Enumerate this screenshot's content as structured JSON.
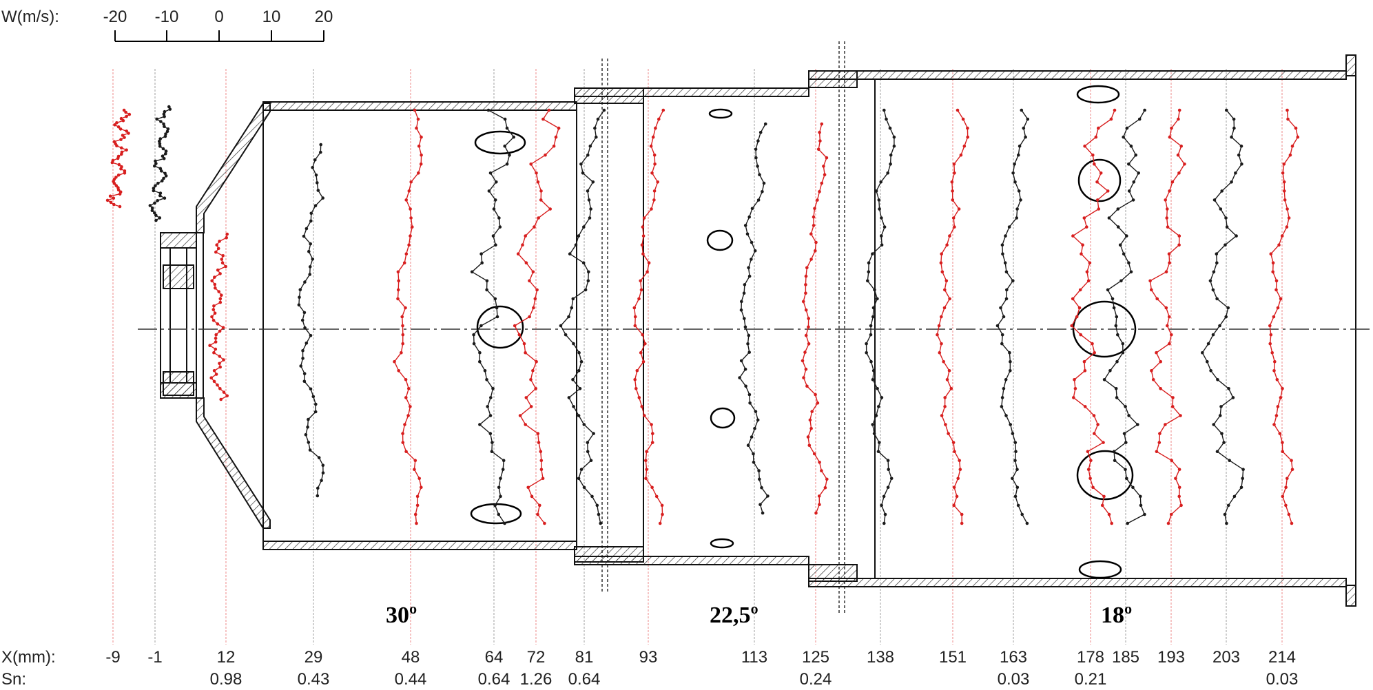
{
  "scale": {
    "label": "W(m/s):",
    "ticks": [
      "-20",
      "-10",
      "0",
      "10",
      "20"
    ]
  },
  "angles": [
    "30º",
    "22,5º",
    "18º"
  ],
  "x_row_label": "X(mm):",
  "sn_row_label": "Sn:",
  "stations": [
    {
      "x": "-9",
      "sn": "",
      "color": "red"
    },
    {
      "x": "-1",
      "sn": "",
      "color": "black"
    },
    {
      "x": "12",
      "sn": "0.98",
      "color": "red"
    },
    {
      "x": "29",
      "sn": "0.43",
      "color": "black"
    },
    {
      "x": "48",
      "sn": "0.44",
      "color": "red"
    },
    {
      "x": "64",
      "sn": "0.64",
      "color": "black"
    },
    {
      "x": "72",
      "sn": "1.26",
      "color": "red"
    },
    {
      "x": "81",
      "sn": "0.64",
      "color": "black"
    },
    {
      "x": "93",
      "sn": "",
      "color": "red"
    },
    {
      "x": "113",
      "sn": "",
      "color": "black"
    },
    {
      "x": "125",
      "sn": "0.24",
      "color": "red"
    },
    {
      "x": "138",
      "sn": "",
      "color": "black"
    },
    {
      "x": "151",
      "sn": "",
      "color": "red"
    },
    {
      "x": "163",
      "sn": "0.03",
      "color": "black"
    },
    {
      "x": "178",
      "sn": "0.21",
      "color": "red"
    },
    {
      "x": "185",
      "sn": "",
      "color": "black"
    },
    {
      "x": "193",
      "sn": "",
      "color": "red"
    },
    {
      "x": "203",
      "sn": "",
      "color": "black"
    },
    {
      "x": "214",
      "sn": "0.03",
      "color": "red"
    }
  ],
  "colors": {
    "red": "#d81e1e",
    "black": "#1a1a1a",
    "guide_red": "#f2a3a3",
    "guide_black": "#b5b5b5"
  }
}
